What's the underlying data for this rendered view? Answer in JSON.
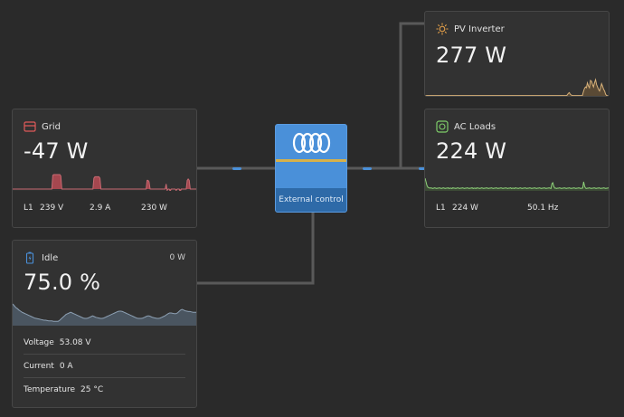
{
  "grid": {
    "title": "Grid",
    "power": "-47 W",
    "phase": "L1",
    "voltage": "239 V",
    "current": "2.9 A",
    "phase_power": "230 W",
    "history": [
      0,
      0,
      0,
      0,
      0,
      0,
      0,
      0,
      0,
      0,
      0,
      0,
      0,
      0,
      0,
      0,
      0,
      0,
      0,
      0,
      0,
      0,
      0,
      0,
      0,
      0,
      0,
      0,
      0,
      0,
      0,
      0,
      0,
      0,
      0,
      0,
      0,
      0,
      0,
      0,
      0.95,
      1,
      1,
      1,
      1,
      1,
      1,
      1,
      0.9,
      0,
      0,
      0,
      0,
      0,
      0,
      0,
      0,
      0,
      0,
      0,
      0,
      0,
      0,
      0,
      0,
      0,
      0,
      0,
      0,
      0,
      0,
      0,
      0,
      0,
      0,
      0,
      0,
      0,
      0,
      0,
      0,
      0.75,
      0.85,
      0.85,
      0.85,
      0.85,
      0.85,
      0.75,
      0,
      0,
      0,
      0,
      0,
      0,
      0,
      0,
      0,
      0,
      0,
      0,
      0,
      0,
      0,
      0,
      0,
      0,
      0,
      0,
      0,
      0,
      0,
      0,
      0,
      0,
      0,
      0,
      0,
      0,
      0,
      0,
      0,
      0,
      0,
      0,
      0,
      0,
      0,
      0,
      0,
      0,
      0,
      0,
      0,
      0,
      0.6,
      0.6,
      0.5,
      0,
      0,
      0,
      0,
      0,
      0,
      0,
      0,
      0,
      0,
      0,
      0,
      0,
      0,
      0,
      0,
      0.35,
      -0.1,
      0,
      0,
      -0.15,
      0,
      0,
      0,
      0,
      0,
      -0.1,
      0,
      0,
      0,
      -0.2,
      0,
      0,
      0,
      0,
      0,
      0,
      0.6,
      0.7,
      0.6,
      0,
      0,
      0,
      0,
      0,
      0,
      0
    ]
  },
  "pv": {
    "title": "PV Inverter",
    "power": "277 W",
    "history": [
      0.02,
      0.02,
      0.02,
      0.02,
      0.02,
      0.02,
      0.02,
      0.02,
      0.02,
      0.02,
      0.02,
      0.02,
      0.02,
      0.02,
      0.02,
      0.02,
      0.02,
      0.02,
      0.02,
      0.02,
      0.02,
      0.02,
      0.02,
      0.02,
      0.02,
      0.02,
      0.02,
      0.02,
      0.02,
      0.02,
      0.02,
      0.02,
      0.02,
      0.02,
      0.02,
      0.02,
      0.02,
      0.02,
      0.02,
      0.02,
      0.02,
      0.02,
      0.02,
      0.02,
      0.02,
      0.02,
      0.02,
      0.02,
      0.02,
      0.02,
      0.02,
      0.02,
      0.02,
      0.02,
      0.02,
      0.02,
      0.02,
      0.02,
      0.02,
      0.02,
      0.02,
      0.02,
      0.02,
      0.02,
      0.02,
      0.02,
      0.02,
      0.02,
      0.02,
      0.02,
      0.02,
      0.02,
      0.02,
      0.02,
      0.02,
      0.02,
      0.02,
      0.02,
      0.02,
      0.02,
      0.02,
      0.02,
      0.02,
      0.02,
      0.02,
      0.02,
      0.02,
      0.02,
      0.02,
      0.02,
      0.02,
      0.02,
      0.02,
      0.02,
      0.02,
      0.02,
      0.02,
      0.02,
      0.02,
      0.02,
      0.02,
      0.02,
      0.02,
      0.02,
      0.02,
      0.02,
      0.02,
      0.02,
      0.02,
      0.02,
      0.02,
      0.02,
      0.02,
      0.02,
      0.02,
      0.02,
      0.02,
      0.02,
      0.02,
      0.02,
      0.02,
      0.02,
      0.02,
      0.02,
      0.02,
      0.02,
      0.02,
      0.02,
      0.02,
      0.02,
      0.02,
      0.02,
      0.02,
      0.02,
      0.02,
      0.02,
      0.02,
      0.02,
      0.02,
      0.02,
      0.02,
      0.05,
      0.15,
      0.2,
      0.1,
      0.05,
      0.02,
      0.02,
      0.02,
      0.02,
      0.02,
      0.02,
      0.02,
      0.02,
      0.02,
      0.02,
      0.02,
      0.25,
      0.45,
      0.55,
      0.5,
      0.8,
      0.6,
      0.5,
      0.95,
      0.9,
      0.7,
      0.55,
      0.8,
      1,
      0.7,
      0.55,
      0.4,
      0.3,
      0.5,
      0.75,
      0.6,
      0.4,
      0.3,
      0.1,
      0.02,
      0.02,
      0.02
    ]
  },
  "ac": {
    "title": "AC Loads",
    "power": "224 W",
    "phase": "L1",
    "phase_power": "224 W",
    "frequency": "50.1 Hz",
    "history": [
      0.75,
      0.55,
      0.35,
      0.25,
      0.22,
      0.2,
      0.22,
      0.2,
      0.18,
      0.2,
      0.22,
      0.2,
      0.18,
      0.2,
      0.2,
      0.22,
      0.2,
      0.18,
      0.2,
      0.22,
      0.2,
      0.18,
      0.2,
      0.2,
      0.22,
      0.18,
      0.2,
      0.2,
      0.18,
      0.22,
      0.2,
      0.2,
      0.18,
      0.2,
      0.22,
      0.2,
      0.18,
      0.2,
      0.2,
      0.22,
      0.2,
      0.18,
      0.2,
      0.2,
      0.22,
      0.2,
      0.18,
      0.2,
      0.2,
      0.22,
      0.18,
      0.2,
      0.2,
      0.18,
      0.22,
      0.2,
      0.2,
      0.18,
      0.2,
      0.22,
      0.2,
      0.18,
      0.2,
      0.2,
      0.22,
      0.2,
      0.18,
      0.2,
      0.2,
      0.22,
      0.2,
      0.18,
      0.2,
      0.2,
      0.22,
      0.2,
      0.18,
      0.2,
      0.2,
      0.22,
      0.2,
      0.18,
      0.2,
      0.2,
      0.22,
      0.2,
      0.18,
      0.2,
      0.2,
      0.22,
      0.18,
      0.2,
      0.2,
      0.18,
      0.22,
      0.2,
      0.2,
      0.18,
      0.2,
      0.22,
      0.2,
      0.18,
      0.2,
      0.2,
      0.22,
      0.2,
      0.18,
      0.2,
      0.2,
      0.22,
      0.2,
      0.18,
      0.2,
      0.2,
      0.22,
      0.2,
      0.18,
      0.2,
      0.2,
      0.22,
      0.2,
      0.18,
      0.2,
      0.2,
      0.22,
      0.2,
      0.18,
      0.2,
      0.2,
      0.22,
      0.2,
      0.18,
      0.45,
      0.5,
      0.3,
      0.2,
      0.2,
      0.18,
      0.2,
      0.2,
      0.22,
      0.2,
      0.18,
      0.2,
      0.2,
      0.22,
      0.2,
      0.18,
      0.2,
      0.2,
      0.22,
      0.2,
      0.18,
      0.2,
      0.2,
      0.22,
      0.2,
      0.18,
      0.2,
      0.2,
      0.22,
      0.2,
      0.18,
      0.2,
      0.2,
      0.55,
      0.3,
      0.2,
      0.18,
      0.2,
      0.2,
      0.22,
      0.2,
      0.18,
      0.2,
      0.2,
      0.22,
      0.2,
      0.18,
      0.2,
      0.2,
      0.22,
      0.2,
      0.18,
      0.2,
      0.2,
      0.22,
      0.2,
      0.18,
      0.2,
      0.2,
      0.22
    ]
  },
  "battery": {
    "title": "Idle",
    "power": "0 W",
    "soc": "75.0 %",
    "voltage_label": "Voltage",
    "voltage": "53.08 V",
    "current_label": "Current",
    "current": "0 A",
    "temperature_label": "Temperature",
    "temperature": "25 °C",
    "history": [
      0.55,
      0.5,
      0.45,
      0.42,
      0.38,
      0.35,
      0.32,
      0.3,
      0.28,
      0.26,
      0.24,
      0.22,
      0.2,
      0.18,
      0.16,
      0.15,
      0.14,
      0.13,
      0.12,
      0.11,
      0.1,
      0.1,
      0.09,
      0.08,
      0.08,
      0.08,
      0.07,
      0.07,
      0.07,
      0.07,
      0.1,
      0.14,
      0.18,
      0.22,
      0.26,
      0.28,
      0.3,
      0.32,
      0.3,
      0.28,
      0.26,
      0.24,
      0.22,
      0.2,
      0.18,
      0.16,
      0.15,
      0.15,
      0.16,
      0.18,
      0.2,
      0.22,
      0.2,
      0.18,
      0.17,
      0.16,
      0.15,
      0.15,
      0.16,
      0.18,
      0.2,
      0.22,
      0.24,
      0.26,
      0.28,
      0.3,
      0.32,
      0.34,
      0.35,
      0.35,
      0.34,
      0.32,
      0.3,
      0.28,
      0.26,
      0.24,
      0.22,
      0.2,
      0.18,
      0.16,
      0.15,
      0.15,
      0.15,
      0.16,
      0.18,
      0.2,
      0.22,
      0.22,
      0.2,
      0.18,
      0.17,
      0.16,
      0.15,
      0.15,
      0.16,
      0.18,
      0.2,
      0.22,
      0.25,
      0.28,
      0.3,
      0.3,
      0.29,
      0.28,
      0.28,
      0.3,
      0.34,
      0.38,
      0.4,
      0.38,
      0.36,
      0.35,
      0.34,
      0.34,
      0.33,
      0.32,
      0.32,
      0.32
    ]
  },
  "inverter": {
    "mode": "External control"
  },
  "colors": {
    "background": "#2a2a2a",
    "grid_accent": "#e05a5a",
    "grid_fill": "#a5474f",
    "pv_accent": "#e8a24a",
    "pv_line": "#d9b27a",
    "ac_accent": "#7fcf6a",
    "ac_line": "#8fd27a",
    "battery_accent": "#4a90d9",
    "battery_fill": "#4a5560",
    "inverter": "#4a90d9"
  }
}
